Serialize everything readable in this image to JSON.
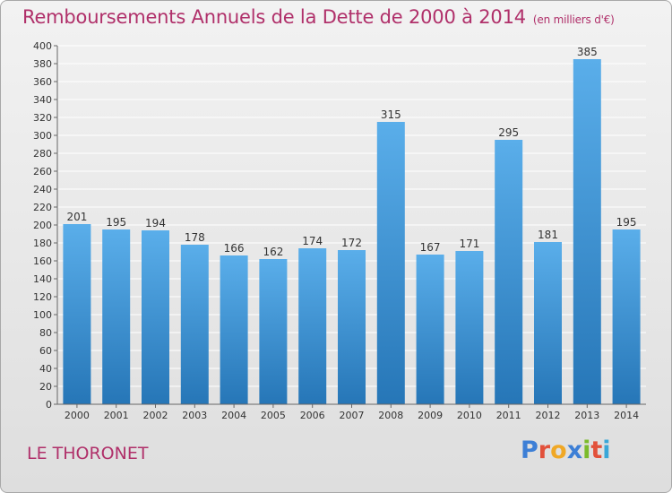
{
  "page": {
    "title": "Remboursements Annuels de la Dette de 2000 à 2014",
    "subtitle": "(en milliers d'€)",
    "commune": "LE THORONET",
    "logo": [
      "P",
      "r",
      "o",
      "x",
      "i",
      "t",
      "i"
    ],
    "logo_colors": [
      "#3d7fd6",
      "#e2513b",
      "#f0a826",
      "#3d7fd6",
      "#7bbb2c",
      "#e2513b",
      "#3aa7d8"
    ]
  },
  "colors": {
    "title": "#b0306a",
    "bar_top": "#5aaeea",
    "bar_bottom": "#2676b7",
    "grid": "#ffffff",
    "axis_text": "#333333"
  },
  "chart_data": {
    "type": "bar",
    "title": "Remboursements Annuels de la Dette de 2000 à 2014",
    "subtitle": "(en milliers d'€)",
    "categories": [
      "2000",
      "2001",
      "2002",
      "2003",
      "2004",
      "2005",
      "2006",
      "2007",
      "2008",
      "2009",
      "2010",
      "2011",
      "2012",
      "2013",
      "2014"
    ],
    "values": [
      201,
      195,
      194,
      178,
      166,
      162,
      174,
      172,
      315,
      167,
      171,
      295,
      181,
      385,
      195
    ],
    "ylim": [
      0,
      400
    ],
    "ytick_step": 20,
    "grid": true,
    "data_labels": true,
    "xlabel": "",
    "ylabel": ""
  }
}
